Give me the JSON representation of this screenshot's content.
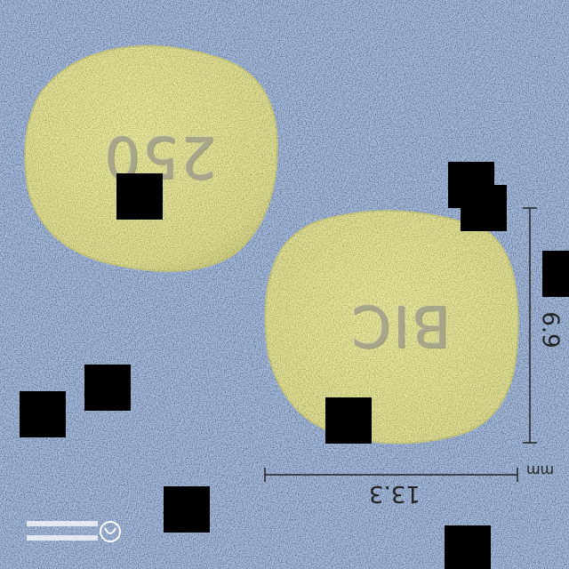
{
  "tablets": [
    {
      "imprint": "250",
      "color": "#e6e59a"
    },
    {
      "imprint": "BIC",
      "color": "#e6e59a"
    }
  ],
  "measurements": {
    "width": "13.3",
    "height": "6.9",
    "unit": "mm"
  },
  "background_color": "#a9c0e6"
}
